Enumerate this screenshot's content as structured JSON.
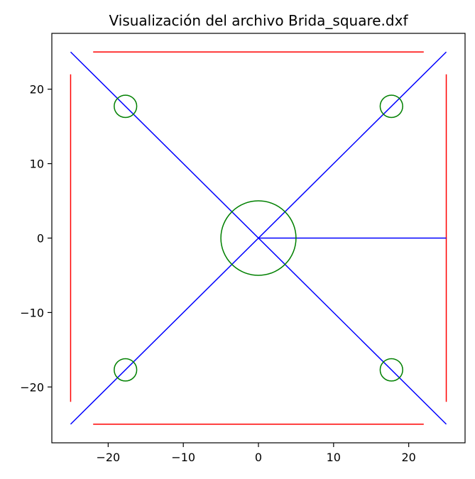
{
  "chart_data": {
    "type": "line",
    "title": "Visualización del archivo Brida_square.dxf",
    "xlabel": "",
    "ylabel": "",
    "xlim": [
      -27.5,
      27.5
    ],
    "ylim": [
      -27.5,
      27.5
    ],
    "grid": false,
    "aspect": "equal",
    "x_ticks": [
      -20,
      -10,
      0,
      10,
      20
    ],
    "y_ticks": [
      -20,
      -10,
      0,
      10,
      20
    ],
    "x_tick_labels": [
      "−20",
      "−10",
      "0",
      "10",
      "20"
    ],
    "y_tick_labels": [
      "−20",
      "−10",
      "0",
      "10",
      "20"
    ],
    "colors": {
      "red_lines": "#ff0000",
      "blue_lines": "#0000ff",
      "green_circles": "#008000"
    },
    "segments": [
      {
        "color": "red",
        "x": [
          -22,
          22
        ],
        "y": [
          25,
          25
        ]
      },
      {
        "color": "red",
        "x": [
          -22,
          22
        ],
        "y": [
          -25,
          -25
        ]
      },
      {
        "color": "red",
        "x": [
          -25,
          -25
        ],
        "y": [
          -22,
          22
        ]
      },
      {
        "color": "red",
        "x": [
          25,
          25
        ],
        "y": [
          -22,
          22
        ]
      },
      {
        "color": "blue",
        "x": [
          -25,
          25
        ],
        "y": [
          25,
          -25
        ]
      },
      {
        "color": "blue",
        "x": [
          -25,
          25
        ],
        "y": [
          -25,
          25
        ]
      },
      {
        "color": "blue",
        "x": [
          0,
          25
        ],
        "y": [
          0,
          0
        ]
      }
    ],
    "circles": [
      {
        "color": "green",
        "cx": 0,
        "cy": 0,
        "r": 5
      },
      {
        "color": "green",
        "cx": -17.7,
        "cy": 17.7,
        "r": 1.5
      },
      {
        "color": "green",
        "cx": 17.7,
        "cy": 17.7,
        "r": 1.5
      },
      {
        "color": "green",
        "cx": -17.7,
        "cy": -17.7,
        "r": 1.5
      },
      {
        "color": "green",
        "cx": 17.7,
        "cy": -17.7,
        "r": 1.5
      }
    ]
  }
}
